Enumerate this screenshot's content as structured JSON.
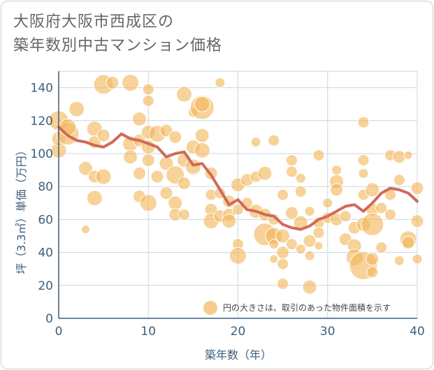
{
  "title_line1": "大阪府大阪市西成区の",
  "title_line2": "築年数別中古マンション価格",
  "chart_data": {
    "type": "scatter",
    "xlabel": "築年数（年）",
    "ylabel": "坪（3.3㎡）単価（万円）",
    "xlim": [
      0,
      40
    ],
    "ylim": [
      0,
      150
    ],
    "x_ticks": [
      0,
      10,
      20,
      30,
      40
    ],
    "y_ticks": [
      0,
      20,
      40,
      60,
      80,
      100,
      120,
      140
    ],
    "grid": true,
    "legend_text": "円の大きさは、取引のあった物件面積を示す",
    "legend_placement": "bottom-right",
    "colors": {
      "bubble": "#f2b65a",
      "line": "#d06a5a",
      "axis": "#3e5f7a",
      "grid": "#c9d6e0"
    },
    "trend_line": {
      "x": [
        0,
        1,
        2,
        3,
        4,
        5,
        6,
        7,
        8,
        9,
        10,
        11,
        12,
        13,
        14,
        15,
        16,
        17,
        18,
        19,
        20,
        21,
        22,
        23,
        24,
        25,
        26,
        27,
        28,
        29,
        30,
        31,
        32,
        33,
        34,
        35,
        36,
        37,
        38,
        39,
        40
      ],
      "y": [
        116,
        111,
        108,
        107,
        105,
        104,
        107,
        112,
        109,
        108,
        106,
        104,
        98,
        100,
        101,
        93,
        94,
        87,
        78,
        69,
        72,
        66,
        65,
        63,
        62,
        57,
        55,
        54,
        56,
        60,
        62,
        65,
        68,
        69,
        65,
        70,
        76,
        79,
        78,
        76,
        71
      ]
    },
    "points": [
      {
        "x": 0,
        "y": 102,
        "s": 11
      },
      {
        "x": 0,
        "y": 120,
        "s": 14
      },
      {
        "x": 0,
        "y": 109,
        "s": 10
      },
      {
        "x": 1,
        "y": 112,
        "s": 16
      },
      {
        "x": 1,
        "y": 116,
        "s": 12
      },
      {
        "x": 2,
        "y": 127,
        "s": 11
      },
      {
        "x": 3,
        "y": 91,
        "s": 10
      },
      {
        "x": 3,
        "y": 54,
        "s": 6
      },
      {
        "x": 4,
        "y": 115,
        "s": 11
      },
      {
        "x": 4,
        "y": 86,
        "s": 9
      },
      {
        "x": 4,
        "y": 73,
        "s": 11
      },
      {
        "x": 4,
        "y": 107,
        "s": 9
      },
      {
        "x": 5,
        "y": 142,
        "s": 14
      },
      {
        "x": 5,
        "y": 111,
        "s": 9
      },
      {
        "x": 5,
        "y": 86,
        "s": 11
      },
      {
        "x": 6,
        "y": 143,
        "s": 9
      },
      {
        "x": 8,
        "y": 143,
        "s": 12
      },
      {
        "x": 8,
        "y": 106,
        "s": 11
      },
      {
        "x": 8,
        "y": 98,
        "s": 10
      },
      {
        "x": 9,
        "y": 121,
        "s": 10
      },
      {
        "x": 9,
        "y": 108,
        "s": 9
      },
      {
        "x": 9,
        "y": 88,
        "s": 9
      },
      {
        "x": 9,
        "y": 74,
        "s": 9
      },
      {
        "x": 10,
        "y": 139,
        "s": 8
      },
      {
        "x": 10,
        "y": 132,
        "s": 8
      },
      {
        "x": 10,
        "y": 113,
        "s": 10
      },
      {
        "x": 10,
        "y": 104,
        "s": 10
      },
      {
        "x": 10,
        "y": 96,
        "s": 9
      },
      {
        "x": 10,
        "y": 70,
        "s": 12
      },
      {
        "x": 11,
        "y": 112,
        "s": 12
      },
      {
        "x": 11,
        "y": 86,
        "s": 9
      },
      {
        "x": 12,
        "y": 114,
        "s": 9
      },
      {
        "x": 12,
        "y": 94,
        "s": 10
      },
      {
        "x": 12,
        "y": 76,
        "s": 9
      },
      {
        "x": 13,
        "y": 110,
        "s": 9
      },
      {
        "x": 13,
        "y": 87,
        "s": 13
      },
      {
        "x": 13,
        "y": 70,
        "s": 10
      },
      {
        "x": 13,
        "y": 63,
        "s": 9
      },
      {
        "x": 14,
        "y": 136,
        "s": 11
      },
      {
        "x": 14,
        "y": 96,
        "s": 10
      },
      {
        "x": 14,
        "y": 82,
        "s": 9
      },
      {
        "x": 14,
        "y": 63,
        "s": 8
      },
      {
        "x": 15,
        "y": 104,
        "s": 10
      },
      {
        "x": 15,
        "y": 92,
        "s": 11
      },
      {
        "x": 15,
        "y": 125,
        "s": 7
      },
      {
        "x": 16,
        "y": 128,
        "s": 17
      },
      {
        "x": 16,
        "y": 130,
        "s": 11
      },
      {
        "x": 16,
        "y": 111,
        "s": 10
      },
      {
        "x": 16,
        "y": 102,
        "s": 11
      },
      {
        "x": 17,
        "y": 88,
        "s": 9
      },
      {
        "x": 17,
        "y": 75,
        "s": 8
      },
      {
        "x": 17,
        "y": 66,
        "s": 9
      },
      {
        "x": 17,
        "y": 59,
        "s": 11
      },
      {
        "x": 18,
        "y": 143,
        "s": 7
      },
      {
        "x": 18,
        "y": 76,
        "s": 8
      },
      {
        "x": 18,
        "y": 62,
        "s": 9
      },
      {
        "x": 19,
        "y": 71,
        "s": 9
      },
      {
        "x": 19,
        "y": 63,
        "s": 9
      },
      {
        "x": 19,
        "y": 59,
        "s": 10
      },
      {
        "x": 20,
        "y": 81,
        "s": 10
      },
      {
        "x": 20,
        "y": 45,
        "s": 8
      },
      {
        "x": 20,
        "y": 38,
        "s": 12
      },
      {
        "x": 20,
        "y": 66,
        "s": 8
      },
      {
        "x": 21,
        "y": 84,
        "s": 9
      },
      {
        "x": 21,
        "y": 70,
        "s": 8
      },
      {
        "x": 22,
        "y": 107,
        "s": 7
      },
      {
        "x": 22,
        "y": 86,
        "s": 8
      },
      {
        "x": 22,
        "y": 65,
        "s": 10
      },
      {
        "x": 23,
        "y": 88,
        "s": 10
      },
      {
        "x": 23,
        "y": 63,
        "s": 9
      },
      {
        "x": 23,
        "y": 51,
        "s": 16
      },
      {
        "x": 24,
        "y": 108,
        "s": 8
      },
      {
        "x": 24,
        "y": 60,
        "s": 8
      },
      {
        "x": 24,
        "y": 50,
        "s": 12
      },
      {
        "x": 24,
        "y": 45,
        "s": 7
      },
      {
        "x": 24,
        "y": 36,
        "s": 6
      },
      {
        "x": 25,
        "y": 75,
        "s": 8
      },
      {
        "x": 25,
        "y": 50,
        "s": 10
      },
      {
        "x": 25,
        "y": 40,
        "s": 9
      },
      {
        "x": 25,
        "y": 33,
        "s": 8
      },
      {
        "x": 25,
        "y": 21,
        "s": 8
      },
      {
        "x": 26,
        "y": 96,
        "s": 8
      },
      {
        "x": 26,
        "y": 89,
        "s": 8
      },
      {
        "x": 26,
        "y": 64,
        "s": 9
      },
      {
        "x": 26,
        "y": 45,
        "s": 8
      },
      {
        "x": 27,
        "y": 85,
        "s": 7
      },
      {
        "x": 27,
        "y": 77,
        "s": 8
      },
      {
        "x": 27,
        "y": 58,
        "s": 10
      },
      {
        "x": 27,
        "y": 42,
        "s": 7
      },
      {
        "x": 28,
        "y": 65,
        "s": 7
      },
      {
        "x": 28,
        "y": 47,
        "s": 9
      },
      {
        "x": 28,
        "y": 38,
        "s": 7
      },
      {
        "x": 28,
        "y": 19,
        "s": 10
      },
      {
        "x": 29,
        "y": 99,
        "s": 8
      },
      {
        "x": 29,
        "y": 58,
        "s": 8
      },
      {
        "x": 29,
        "y": 52,
        "s": 8
      },
      {
        "x": 29,
        "y": 44,
        "s": 6
      },
      {
        "x": 30,
        "y": 70,
        "s": 7
      },
      {
        "x": 30,
        "y": 61,
        "s": 8
      },
      {
        "x": 31,
        "y": 90,
        "s": 7
      },
      {
        "x": 31,
        "y": 83,
        "s": 10
      },
      {
        "x": 31,
        "y": 78,
        "s": 9
      },
      {
        "x": 31,
        "y": 60,
        "s": 9
      },
      {
        "x": 32,
        "y": 62,
        "s": 8
      },
      {
        "x": 32,
        "y": 48,
        "s": 9
      },
      {
        "x": 33,
        "y": 55,
        "s": 9
      },
      {
        "x": 33,
        "y": 44,
        "s": 10
      },
      {
        "x": 33,
        "y": 37,
        "s": 12
      },
      {
        "x": 34,
        "y": 32,
        "s": 20
      },
      {
        "x": 34,
        "y": 119,
        "s": 8
      },
      {
        "x": 34,
        "y": 96,
        "s": 8
      },
      {
        "x": 34,
        "y": 88,
        "s": 7
      },
      {
        "x": 34,
        "y": 75,
        "s": 8
      },
      {
        "x": 34,
        "y": 57,
        "s": 10
      },
      {
        "x": 35,
        "y": 78,
        "s": 10
      },
      {
        "x": 35,
        "y": 66,
        "s": 9
      },
      {
        "x": 35,
        "y": 57,
        "s": 16
      },
      {
        "x": 35,
        "y": 36,
        "s": 9
      },
      {
        "x": 35,
        "y": 28,
        "s": 8
      },
      {
        "x": 36,
        "y": 67,
        "s": 8
      },
      {
        "x": 36,
        "y": 43,
        "s": 8
      },
      {
        "x": 37,
        "y": 99,
        "s": 8
      },
      {
        "x": 37,
        "y": 75,
        "s": 8
      },
      {
        "x": 37,
        "y": 63,
        "s": 8
      },
      {
        "x": 38,
        "y": 98,
        "s": 9
      },
      {
        "x": 38,
        "y": 84,
        "s": 8
      },
      {
        "x": 38,
        "y": 35,
        "s": 7
      },
      {
        "x": 39,
        "y": 99,
        "s": 6
      },
      {
        "x": 39,
        "y": 48,
        "s": 12
      },
      {
        "x": 39,
        "y": 46,
        "s": 9
      },
      {
        "x": 40,
        "y": 79,
        "s": 9
      },
      {
        "x": 40,
        "y": 59,
        "s": 9
      },
      {
        "x": 40,
        "y": 36,
        "s": 7
      }
    ]
  }
}
